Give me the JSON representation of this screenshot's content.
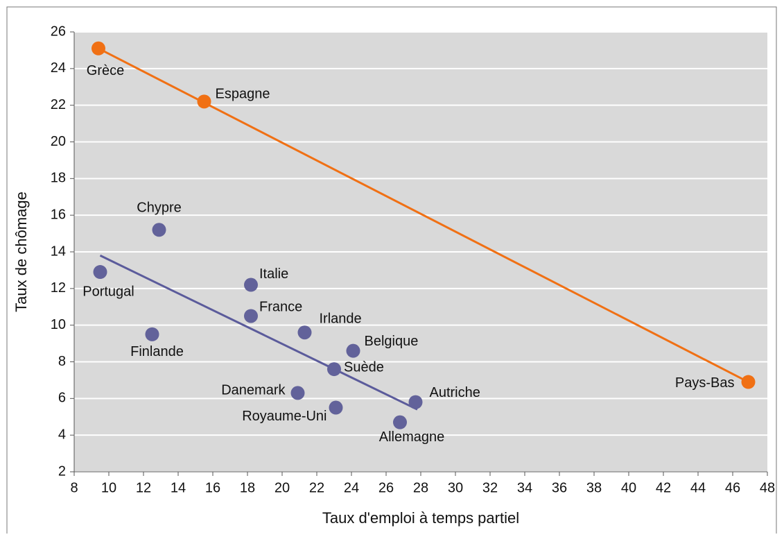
{
  "chart_data": {
    "type": "scatter",
    "x_label": "Taux d'emploi à temps partiel",
    "y_label": "Taux de chômage",
    "xlim": [
      8,
      48
    ],
    "xticks": [
      8,
      10,
      12,
      14,
      16,
      18,
      20,
      22,
      24,
      26,
      28,
      30,
      32,
      34,
      36,
      38,
      40,
      42,
      44,
      46,
      48
    ],
    "ylim": [
      2,
      26
    ],
    "yticks": [
      2,
      4,
      6,
      8,
      10,
      12,
      14,
      16,
      18,
      20,
      22,
      24,
      26
    ],
    "grid": true,
    "series": [
      {
        "color": "#f07014",
        "labels": [
          "Grèce",
          "Espagne",
          "Pays-Bas"
        ],
        "x": [
          9.4,
          15.5,
          46.9
        ],
        "values": [
          25.1,
          22.2,
          6.9
        ]
      },
      {
        "color": "#62629a",
        "labels": [
          "Chypre",
          "Portugal",
          "Finlande",
          "Italie",
          "France",
          "Irlande",
          "Belgique",
          "Suède",
          "Danemark",
          "Royaume-Uni",
          "Autriche",
          "Allemagne"
        ],
        "x": [
          12.9,
          9.5,
          12.5,
          18.2,
          18.2,
          21.3,
          24.1,
          23.0,
          20.9,
          23.1,
          27.7,
          26.8
        ],
        "values": [
          15.2,
          12.9,
          9.5,
          12.2,
          10.5,
          9.6,
          8.6,
          7.6,
          6.3,
          5.5,
          5.8,
          4.7
        ]
      }
    ],
    "trendlines": [
      {
        "color": "#f07014",
        "x": [
          9.4,
          46.9
        ],
        "y": [
          25.1,
          6.9
        ]
      },
      {
        "color": "#5b5b9b",
        "x": [
          9.5,
          27.8
        ],
        "y": [
          13.8,
          5.4
        ]
      }
    ]
  }
}
